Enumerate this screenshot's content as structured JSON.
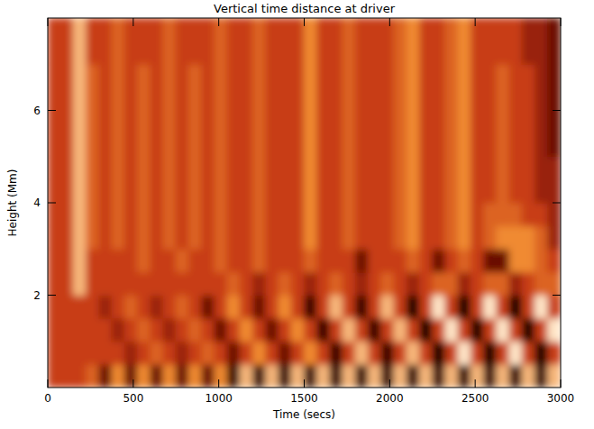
{
  "chart_data": {
    "type": "heatmap",
    "title": "Vertical time distance at driver",
    "x_label": "Time (secs)",
    "y_label": "Height (Mm)",
    "xlim": [
      0,
      3000
    ],
    "xticks": [
      0,
      500,
      1000,
      1500,
      2000,
      2500,
      3000
    ],
    "ylim": [
      0,
      8
    ],
    "yticks": [
      2,
      4,
      6
    ],
    "x": [
      37.5,
      112.5,
      187.5,
      262.5,
      337.5,
      412.5,
      487.5,
      562.5,
      637.5,
      712.5,
      787.5,
      862.5,
      937.5,
      1012.5,
      1087.5,
      1162.5,
      1237.5,
      1312.5,
      1387.5,
      1462.5,
      1537.5,
      1612.5,
      1687.5,
      1762.5,
      1837.5,
      1912.5,
      1987.5,
      2062.5,
      2137.5,
      2212.5,
      2287.5,
      2362.5,
      2437.5,
      2512.5,
      2587.5,
      2662.5,
      2737.5,
      2812.5,
      2887.5,
      2962.5
    ],
    "y": [
      0.25,
      0.75,
      1.25,
      1.75,
      2.25,
      2.75,
      3.25,
      3.75,
      4.25,
      4.75,
      5.25,
      5.75,
      6.25,
      6.75,
      7.25,
      7.75
    ],
    "cells": [
      [
        5,
        5,
        5,
        6,
        3,
        7,
        3,
        7,
        3,
        7,
        3,
        7,
        3,
        7,
        2,
        8,
        2,
        8,
        2,
        8,
        2,
        8,
        2,
        8,
        2,
        8,
        2,
        8,
        2,
        8,
        2,
        8,
        2,
        8,
        2,
        8,
        2,
        8,
        2,
        8
      ],
      [
        5,
        5,
        5,
        5,
        5,
        5,
        4,
        5,
        6,
        5,
        4,
        5,
        6,
        5,
        3,
        5,
        7,
        5,
        3,
        5,
        7,
        5,
        2,
        5,
        8,
        5,
        2,
        5,
        8,
        5,
        1,
        5,
        9,
        5,
        1,
        5,
        9,
        5,
        1,
        5
      ],
      [
        5,
        5,
        5,
        5,
        5,
        4,
        5,
        6,
        5,
        4,
        5,
        6,
        5,
        3,
        5,
        7,
        5,
        3,
        5,
        7,
        5,
        2,
        5,
        8,
        5,
        2,
        5,
        8,
        5,
        1,
        5,
        9,
        5,
        1,
        5,
        9,
        5,
        1,
        5,
        9
      ],
      [
        5,
        5,
        5,
        5,
        4,
        5,
        6,
        5,
        4,
        5,
        6,
        5,
        3,
        5,
        7,
        5,
        3,
        5,
        7,
        5,
        2,
        5,
        8,
        5,
        2,
        5,
        8,
        5,
        1,
        5,
        9,
        5,
        1,
        5,
        9,
        5,
        1,
        5,
        9,
        5
      ],
      [
        5,
        5,
        8,
        5,
        5,
        5,
        5,
        5,
        5,
        5,
        5,
        5,
        5,
        5,
        6,
        5,
        4,
        5,
        6,
        5,
        4,
        5,
        6,
        5,
        4,
        5,
        6,
        5,
        4,
        5,
        6,
        6,
        4,
        5,
        6,
        6,
        4,
        5,
        6,
        6
      ],
      [
        5,
        5,
        8,
        5,
        5,
        5,
        5,
        6,
        5,
        5,
        6,
        5,
        5,
        6,
        5,
        5,
        6,
        5,
        5,
        5,
        6,
        5,
        5,
        5,
        3,
        5,
        5,
        5,
        6,
        5,
        3,
        5,
        6,
        5,
        3,
        3,
        7,
        7,
        6,
        5
      ],
      [
        5,
        5,
        8,
        6,
        5,
        6,
        5,
        6,
        5,
        6,
        5,
        6,
        5,
        6,
        5,
        5,
        6,
        5,
        5,
        5,
        7,
        5,
        5,
        6,
        5,
        5,
        5,
        6,
        7,
        5,
        5,
        6,
        7,
        5,
        6,
        7,
        7,
        7,
        6,
        4
      ],
      [
        5,
        5,
        8,
        6,
        5,
        6,
        5,
        6,
        5,
        6,
        5,
        6,
        5,
        6,
        5,
        5,
        6,
        5,
        5,
        5,
        7,
        5,
        5,
        6,
        5,
        5,
        5,
        6,
        7,
        5,
        5,
        6,
        7,
        5,
        6,
        6,
        6,
        5,
        5,
        4
      ],
      [
        5,
        5,
        8,
        6,
        5,
        6,
        5,
        6,
        5,
        6,
        5,
        6,
        5,
        6,
        5,
        5,
        6,
        5,
        5,
        5,
        7,
        5,
        5,
        6,
        5,
        5,
        5,
        6,
        7,
        5,
        5,
        6,
        7,
        5,
        5,
        6,
        5,
        5,
        4,
        4
      ],
      [
        5,
        5,
        8,
        6,
        5,
        6,
        5,
        6,
        5,
        6,
        5,
        6,
        5,
        6,
        5,
        5,
        6,
        5,
        5,
        5,
        7,
        5,
        5,
        6,
        5,
        5,
        5,
        6,
        7,
        5,
        5,
        6,
        7,
        5,
        5,
        6,
        5,
        5,
        4,
        4
      ],
      [
        5,
        5,
        8,
        6,
        5,
        6,
        5,
        6,
        5,
        6,
        5,
        6,
        5,
        6,
        5,
        5,
        6,
        5,
        5,
        5,
        7,
        5,
        5,
        6,
        5,
        5,
        5,
        6,
        7,
        5,
        5,
        6,
        7,
        5,
        5,
        6,
        5,
        5,
        4,
        3
      ],
      [
        5,
        5,
        8,
        6,
        5,
        6,
        5,
        6,
        5,
        6,
        5,
        6,
        5,
        6,
        5,
        5,
        6,
        5,
        5,
        5,
        7,
        5,
        5,
        6,
        5,
        5,
        5,
        6,
        7,
        5,
        5,
        6,
        7,
        5,
        5,
        6,
        5,
        5,
        4,
        3
      ],
      [
        5,
        5,
        8,
        6,
        5,
        6,
        5,
        6,
        5,
        6,
        5,
        6,
        5,
        6,
        5,
        5,
        6,
        5,
        5,
        5,
        7,
        5,
        5,
        6,
        5,
        5,
        5,
        6,
        7,
        5,
        5,
        6,
        7,
        5,
        5,
        6,
        5,
        5,
        4,
        3
      ],
      [
        5,
        5,
        8,
        6,
        5,
        6,
        5,
        6,
        5,
        6,
        5,
        6,
        5,
        6,
        5,
        5,
        6,
        5,
        5,
        5,
        7,
        5,
        5,
        6,
        5,
        5,
        5,
        6,
        7,
        5,
        5,
        6,
        7,
        5,
        5,
        6,
        5,
        5,
        4,
        3
      ],
      [
        5,
        5,
        8,
        5,
        5,
        6,
        5,
        5,
        5,
        6,
        5,
        5,
        5,
        6,
        5,
        5,
        6,
        5,
        5,
        5,
        7,
        5,
        5,
        6,
        5,
        5,
        5,
        6,
        7,
        5,
        5,
        6,
        7,
        5,
        5,
        5,
        5,
        4,
        4,
        3
      ],
      [
        5,
        5,
        8,
        5,
        5,
        6,
        5,
        5,
        5,
        6,
        5,
        5,
        5,
        6,
        5,
        5,
        6,
        5,
        5,
        5,
        7,
        5,
        5,
        6,
        5,
        5,
        5,
        6,
        7,
        5,
        5,
        6,
        7,
        5,
        5,
        5,
        5,
        4,
        4,
        3
      ]
    ]
  }
}
